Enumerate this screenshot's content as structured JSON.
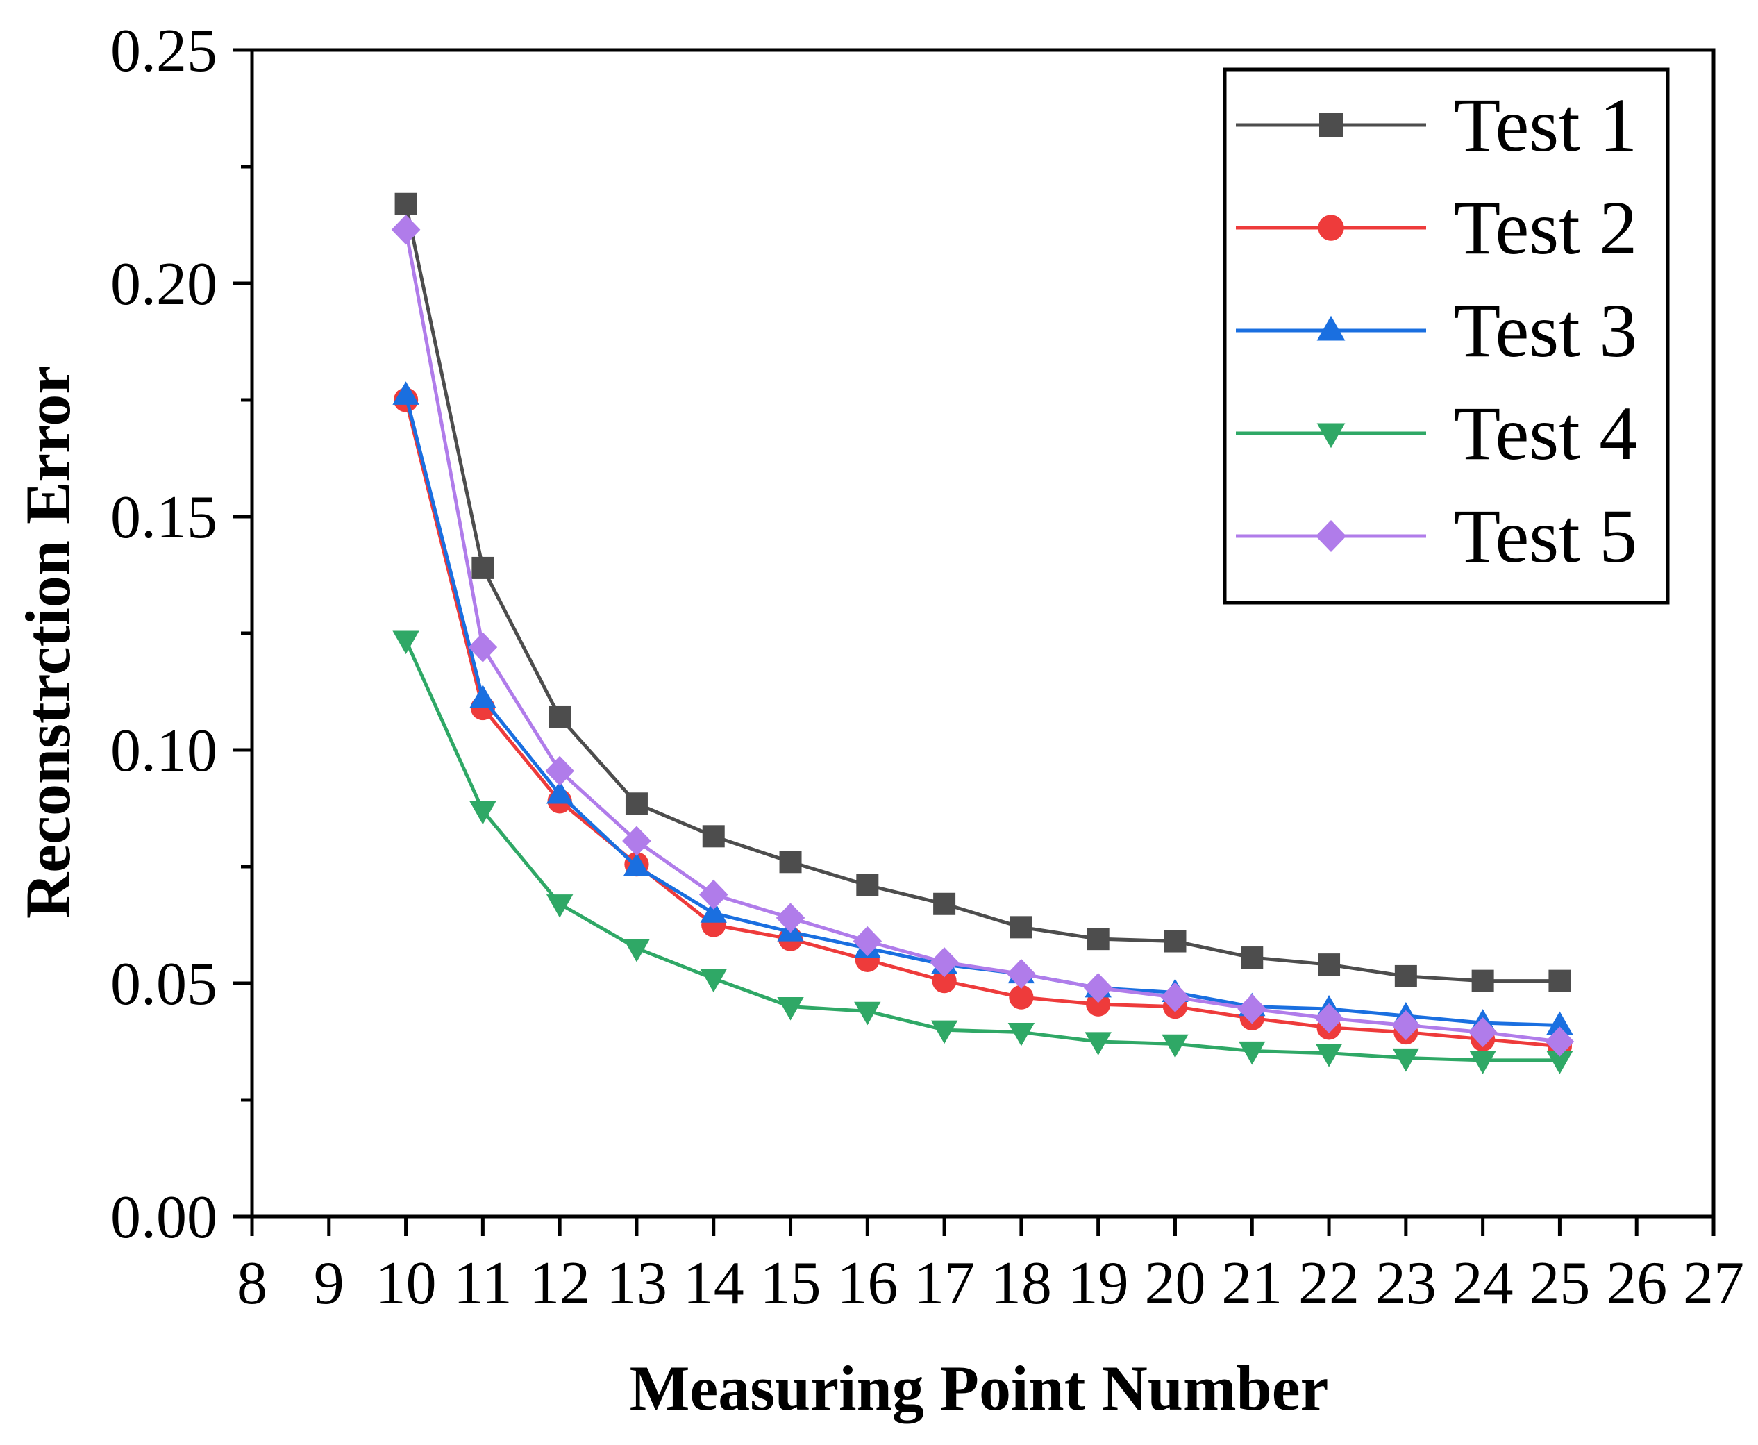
{
  "chart_data": {
    "type": "line",
    "title": "",
    "xlabel": "Measuring Point Number",
    "ylabel": "Reconstrction Error",
    "xlim": [
      8,
      27
    ],
    "ylim": [
      0,
      0.25
    ],
    "xticks": [
      8,
      9,
      10,
      11,
      12,
      13,
      14,
      15,
      16,
      17,
      18,
      19,
      20,
      21,
      22,
      23,
      24,
      25,
      26,
      27
    ],
    "yticks": [
      0.0,
      0.05,
      0.1,
      0.15,
      0.2,
      0.25
    ],
    "ytick_labels": [
      "0.00",
      "0.05",
      "0.10",
      "0.15",
      "0.20",
      "0.25"
    ],
    "grid": false,
    "legend_position": "top-right",
    "x": [
      10,
      11,
      12,
      13,
      14,
      15,
      16,
      17,
      18,
      19,
      20,
      21,
      22,
      23,
      24,
      25
    ],
    "series": [
      {
        "name": "Test 1",
        "color": "#4d4d4d",
        "marker": "square",
        "values": [
          0.217,
          0.139,
          0.107,
          0.0885,
          0.0815,
          0.076,
          0.071,
          0.067,
          0.062,
          0.0595,
          0.059,
          0.0555,
          0.054,
          0.0515,
          0.0505,
          0.0505
        ]
      },
      {
        "name": "Test 2",
        "color": "#ee3b3b",
        "marker": "circle",
        "values": [
          0.175,
          0.109,
          0.089,
          0.0755,
          0.0625,
          0.0595,
          0.055,
          0.0505,
          0.047,
          0.0455,
          0.045,
          0.0425,
          0.0405,
          0.0395,
          0.038,
          0.0365
        ]
      },
      {
        "name": "Test 3",
        "color": "#1a6fe0",
        "marker": "triangle-up",
        "values": [
          0.176,
          0.111,
          0.0905,
          0.075,
          0.065,
          0.061,
          0.0575,
          0.054,
          0.052,
          0.049,
          0.048,
          0.045,
          0.0445,
          0.043,
          0.0415,
          0.041
        ]
      },
      {
        "name": "Test 4",
        "color": "#2fa866",
        "marker": "triangle-down",
        "values": [
          0.1235,
          0.087,
          0.067,
          0.0575,
          0.051,
          0.045,
          0.044,
          0.04,
          0.0395,
          0.0375,
          0.037,
          0.0355,
          0.035,
          0.034,
          0.0335,
          0.0335
        ]
      },
      {
        "name": "Test 5",
        "color": "#b07cea",
        "marker": "diamond",
        "values": [
          0.2115,
          0.122,
          0.0955,
          0.0805,
          0.069,
          0.064,
          0.059,
          0.0545,
          0.052,
          0.049,
          0.047,
          0.0445,
          0.0425,
          0.041,
          0.0395,
          0.0375
        ]
      }
    ]
  }
}
